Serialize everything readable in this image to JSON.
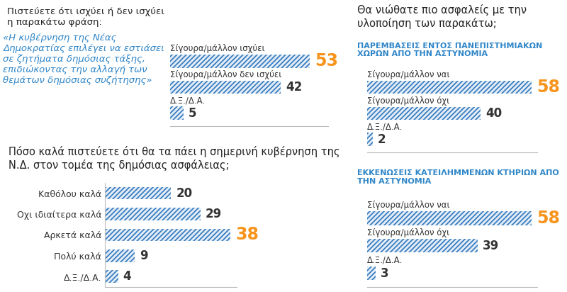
{
  "chart_data": [
    {
      "type": "bar",
      "orientation": "horizontal",
      "title": "Πιστεύετε ότι ισχύει ή δεν ισχύει η παρακάτω φράση:",
      "subtitle": "«Η κυβέρνηση της Νέας Δημοκρατίας επιλέγει να εστιάσει σε ζητήματα δημόσιας τάξης, επιδιώκοντας την αλλαγή των θεμάτων δημόσιας συζήτησης»",
      "categories": [
        "Σίγουρα/μάλλον ισχύει",
        "Σίγουρα/μάλλον δεν ισχύει",
        "Δ.Ξ./Δ.Α."
      ],
      "values": [
        53,
        42,
        5
      ],
      "color": "#3a7dbf",
      "xlim": [
        0,
        60
      ],
      "data_labels": true,
      "tick_labels": false
    },
    {
      "type": "bar",
      "orientation": "horizontal",
      "title": "Πόσο καλά πιστεύετε ότι θα τα πάει η σημερινή κυβέρνηση της Ν.Δ. στον τομέα της δημόσιας ασφάλειας;",
      "categories": [
        "Καθόλου καλά",
        "Οχι ιδιαίτερα καλά",
        "Αρκετά καλά",
        "Πολύ καλά",
        "Δ.Ξ./Δ.Α."
      ],
      "values": [
        20,
        29,
        38,
        9,
        4
      ],
      "color": "#3a7dbf",
      "xlim": [
        0,
        40
      ],
      "data_labels": true,
      "tick_labels": "y"
    },
    {
      "type": "bar",
      "orientation": "horizontal",
      "title": "Θα νιώθατε πιο ασφαλείς με την υλοποίηση των παρακάτω;",
      "subtitle": "ΠΑΡΕΜΒΑΣΕΙΣ ΕΝΤΟΣ ΠΑΝΕΠΙΣΤΗΜΙΑΚΩΝ ΧΩΡΩΝ ΑΠΟ ΤΗΝ ΑΣΤΥΝΟΜΙΑ",
      "categories": [
        "Σίγουρα/μάλλον ναι",
        "Σίγουρα/μάλλον όχι",
        "Δ.Ξ./Δ.Α."
      ],
      "values": [
        58,
        40,
        2
      ],
      "color": "#3a7dbf",
      "xlim": [
        0,
        60
      ],
      "data_labels": true,
      "tick_labels": false
    },
    {
      "type": "bar",
      "orientation": "horizontal",
      "subtitle": "ΕΚΚΕΝΩΣΕΙΣ ΚΑΤΕΙΛΗΜΜΕΝΩΝ ΚΤΗΡΙΩΝ ΑΠΟ ΤΗΝ ΑΣΤΥΝΟΜΙΑ",
      "categories": [
        "Σίγουρα/μάλλον ναι",
        "Σίγουρα/μάλλον όχι",
        "Δ.Ξ./Δ.Α."
      ],
      "values": [
        58,
        39,
        3
      ],
      "color": "#3a7dbf",
      "xlim": [
        0,
        60
      ],
      "data_labels": true,
      "tick_labels": false
    }
  ]
}
